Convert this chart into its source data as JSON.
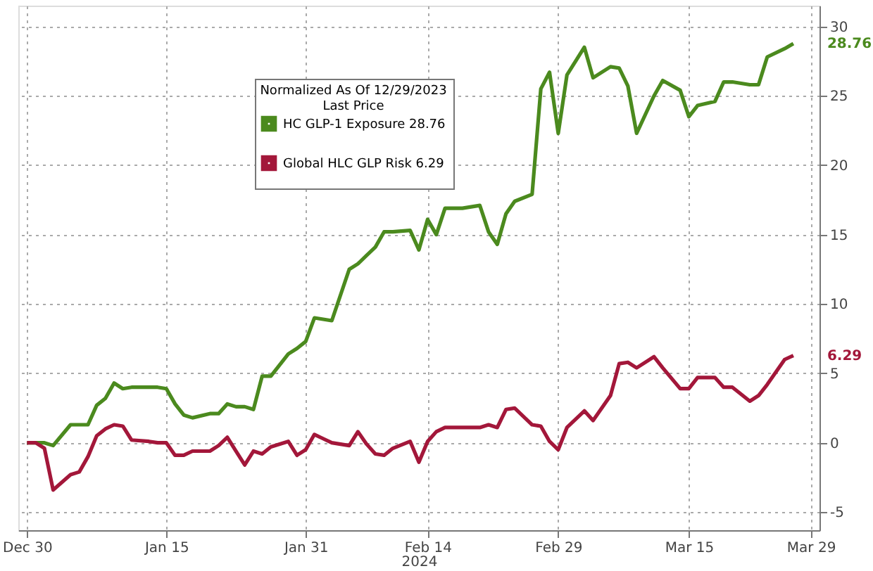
{
  "chart_data": {
    "type": "line",
    "legend_title": "Normalized As Of 12/29/2023\nLast Price",
    "xlabel": "2024",
    "x": [
      "2023-12-30",
      "2023-12-31",
      "2024-01-01",
      "2024-01-02",
      "2024-01-04",
      "2024-01-05",
      "2024-01-06",
      "2024-01-07",
      "2024-01-08",
      "2024-01-09",
      "2024-01-10",
      "2024-01-11",
      "2024-01-13",
      "2024-01-14",
      "2024-01-15",
      "2024-01-16",
      "2024-01-17",
      "2024-01-18",
      "2024-01-20",
      "2024-01-21",
      "2024-01-22",
      "2024-01-23",
      "2024-01-24",
      "2024-01-25",
      "2024-01-26",
      "2024-01-27",
      "2024-01-29",
      "2024-01-30",
      "2024-01-31",
      "2024-02-01",
      "2024-02-02",
      "2024-02-03",
      "2024-02-05",
      "2024-02-06",
      "2024-02-07",
      "2024-02-08",
      "2024-02-09",
      "2024-02-10",
      "2024-02-12",
      "2024-02-13",
      "2024-02-14",
      "2024-02-15",
      "2024-02-16",
      "2024-02-17",
      "2024-02-18",
      "2024-02-20",
      "2024-02-21",
      "2024-02-22",
      "2024-02-23",
      "2024-02-24",
      "2024-02-26",
      "2024-02-27",
      "2024-02-28",
      "2024-02-29",
      "2024-03-01",
      "2024-03-03",
      "2024-03-04",
      "2024-03-06",
      "2024-03-07",
      "2024-03-08",
      "2024-03-09",
      "2024-03-11",
      "2024-03-12",
      "2024-03-14",
      "2024-03-15",
      "2024-03-16",
      "2024-03-18",
      "2024-03-19",
      "2024-03-20",
      "2024-03-22",
      "2024-03-23",
      "2024-03-24",
      "2024-03-26",
      "2024-03-27"
    ],
    "series": [
      {
        "name": "HC GLP-1 Exposure 28.76",
        "color": "#4b8a1e",
        "values": [
          0,
          0,
          0,
          -0.2,
          1.3,
          1.3,
          1.3,
          2.7,
          3.2,
          4.3,
          3.9,
          4.0,
          4.0,
          4.0,
          3.9,
          2.8,
          2.0,
          1.8,
          2.1,
          2.1,
          2.8,
          2.6,
          2.6,
          2.4,
          4.8,
          4.8,
          6.4,
          6.8,
          7.3,
          9.0,
          8.9,
          8.8,
          12.5,
          12.9,
          13.5,
          14.1,
          15.2,
          15.2,
          15.3,
          13.9,
          16.1,
          15.0,
          16.9,
          16.9,
          16.9,
          17.1,
          15.2,
          14.3,
          16.5,
          17.4,
          17.9,
          25.5,
          26.7,
          22.3,
          26.5,
          28.5,
          26.3,
          27.1,
          27.0,
          25.7,
          22.3,
          25.0,
          26.1,
          25.4,
          23.5,
          24.3,
          24.6,
          26.0,
          26.0,
          25.8,
          25.8,
          27.8,
          28.4,
          28.76
        ]
      },
      {
        "name": "Global HLC GLP Risk 6.29",
        "color": "#a3173a",
        "values": [
          0,
          0,
          -0.4,
          -3.4,
          -2.3,
          -2.1,
          -1.0,
          0.5,
          1.0,
          1.3,
          1.2,
          0.2,
          0.1,
          0,
          0,
          -0.9,
          -0.9,
          -0.6,
          -0.6,
          -0.2,
          0.4,
          -0.6,
          -1.6,
          -0.6,
          -0.8,
          -0.3,
          0.1,
          -0.9,
          -0.5,
          0.6,
          0.3,
          0,
          -0.2,
          0.8,
          -0.1,
          -0.8,
          -0.9,
          -0.4,
          0.1,
          -1.4,
          0.1,
          0.8,
          1.1,
          1.1,
          1.1,
          1.1,
          1.3,
          1.1,
          2.4,
          2.5,
          1.3,
          1.2,
          0.1,
          -0.5,
          1.1,
          2.3,
          1.6,
          3.4,
          5.7,
          5.8,
          5.4,
          6.2,
          5.4,
          3.9,
          3.9,
          4.7,
          4.7,
          4.0,
          4.0,
          3.0,
          3.4,
          4.2,
          6.0,
          6.29
        ]
      }
    ],
    "annotations": [
      {
        "text": "28.76",
        "x": "2024-03-27",
        "y": 28.76
      },
      {
        "text": "6.29",
        "x": "2024-03-27",
        "y": 6.29
      }
    ],
    "xlim": [
      "2023-12-29",
      "2024-03-30"
    ],
    "xticks": [
      {
        "value": "2023-12-30",
        "label": "Dec 30"
      },
      {
        "value": "2024-01-15",
        "label": "Jan 15"
      },
      {
        "value": "2024-01-31",
        "label": "Jan 31"
      },
      {
        "value": "2024-02-14",
        "label": "Feb 14"
      },
      {
        "value": "2024-02-29",
        "label": "Feb 29"
      },
      {
        "value": "2024-03-15",
        "label": "Mar 15"
      },
      {
        "value": "2024-03-29",
        "label": "Mar 29"
      }
    ],
    "ylim": [
      -6.3,
      31.5
    ],
    "yticks": [
      -5,
      0,
      5,
      10,
      15,
      20,
      25,
      30
    ],
    "grid": true,
    "legend": "top left",
    "marker": "none",
    "line_style": "solid"
  }
}
